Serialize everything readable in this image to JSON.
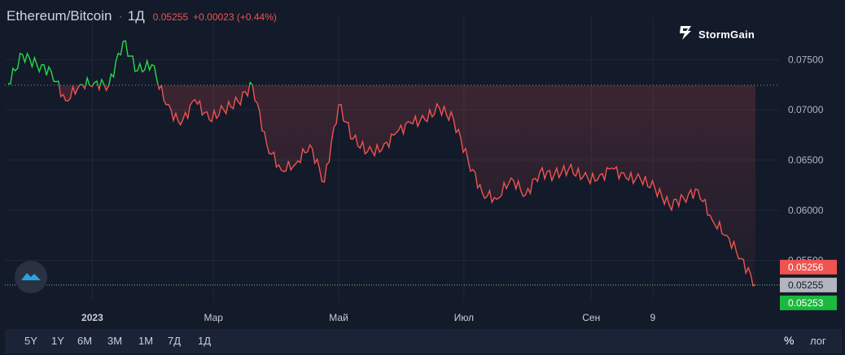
{
  "header": {
    "symbol": "Ethereum/Bitcoin",
    "separator": "·",
    "timeframe": "1Д",
    "last": "0.05255",
    "change": "+0.00023 (+0.44%)"
  },
  "brand": {
    "name": "StormGain"
  },
  "ranges": [
    "5Y",
    "1Y",
    "6M",
    "3M",
    "1M",
    "7Д",
    "1Д"
  ],
  "controls": {
    "percent": "%",
    "log": "лог"
  },
  "colors": {
    "down": "#ef5350",
    "up": "#26d948",
    "background": "#131a2a",
    "current_label": "#b2b5be"
  },
  "chart_data": {
    "type": "line",
    "title": "Ethereum/Bitcoin",
    "x_tick_labels": [
      "2023",
      "Мар",
      "Май",
      "Июл",
      "Сен",
      "9"
    ],
    "y_tick_labels": [
      "0.07500",
      "0.07000",
      "0.06500",
      "0.06000",
      "0.05500"
    ],
    "ylim": [
      0.051,
      0.0777
    ],
    "baseline": 0.07245,
    "grid": true,
    "price_labels": {
      "high": "0.05256",
      "current": "0.05255",
      "low": "0.05253"
    },
    "x": [
      "2022-11-21",
      "2022-11-28",
      "2022-12-05",
      "2022-12-12",
      "2022-12-19",
      "2022-12-26",
      "2023-01-02",
      "2023-01-09",
      "2023-01-16",
      "2023-01-23",
      "2023-01-30",
      "2023-02-06",
      "2023-02-13",
      "2023-02-20",
      "2023-02-27",
      "2023-03-06",
      "2023-03-13",
      "2023-03-20",
      "2023-03-27",
      "2023-04-03",
      "2023-04-10",
      "2023-04-17",
      "2023-04-24",
      "2023-05-01",
      "2023-05-08",
      "2023-05-15",
      "2023-05-22",
      "2023-05-29",
      "2023-06-05",
      "2023-06-12",
      "2023-06-19",
      "2023-06-26",
      "2023-07-03",
      "2023-07-10",
      "2023-07-17",
      "2023-07-24",
      "2023-07-31",
      "2023-08-07",
      "2023-08-14",
      "2023-08-21",
      "2023-08-28",
      "2023-09-04",
      "2023-09-11",
      "2023-09-18",
      "2023-09-25",
      "2023-10-02",
      "2023-10-09",
      "2023-10-16",
      "2023-10-23",
      "2023-10-30",
      "2023-11-06",
      "2023-11-13",
      "2023-11-20"
    ],
    "series": [
      {
        "values": [
          0.0726,
          0.0755,
          0.0745,
          0.0738,
          0.0709,
          0.0725,
          0.0727,
          0.0724,
          0.0768,
          0.0739,
          0.0745,
          0.0705,
          0.0685,
          0.071,
          0.069,
          0.07,
          0.0708,
          0.0725,
          0.0665,
          0.064,
          0.0646,
          0.0665,
          0.0628,
          0.0705,
          0.0671,
          0.0658,
          0.066,
          0.0677,
          0.0687,
          0.069,
          0.0702,
          0.069,
          0.065,
          0.0617,
          0.0611,
          0.0632,
          0.0615,
          0.0638,
          0.0635,
          0.0641,
          0.0633,
          0.063,
          0.0642,
          0.0632,
          0.0631,
          0.0622,
          0.0605,
          0.0612,
          0.062,
          0.059,
          0.0575,
          0.0552,
          0.0526
        ]
      }
    ]
  }
}
